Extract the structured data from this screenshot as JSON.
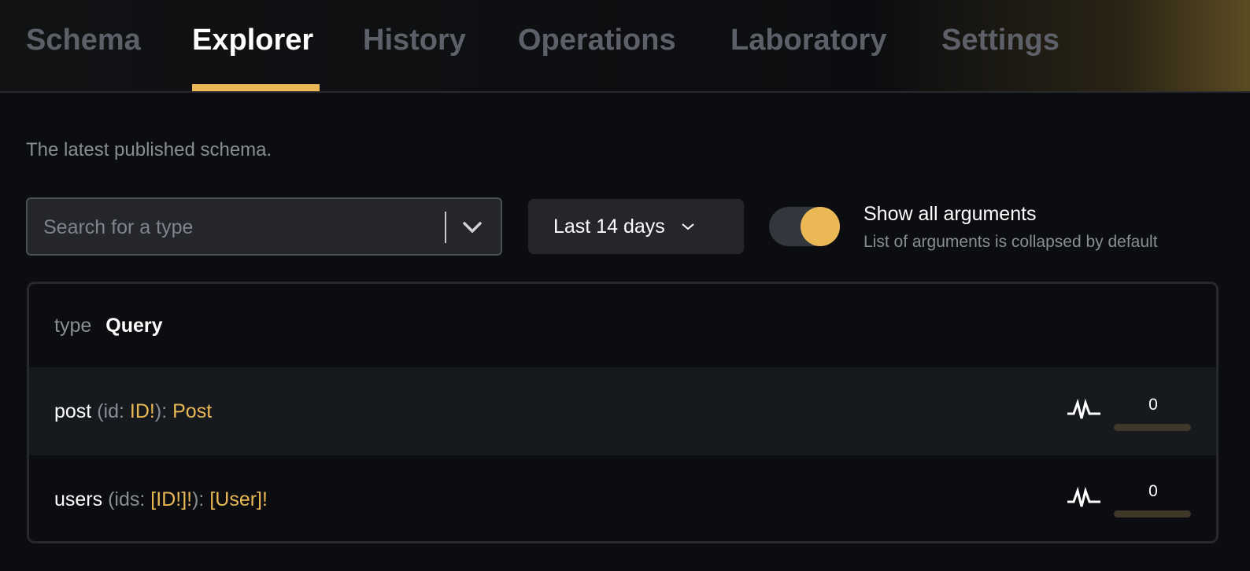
{
  "tabs": [
    {
      "label": "Schema"
    },
    {
      "label": "Explorer",
      "active": true
    },
    {
      "label": "History"
    },
    {
      "label": "Operations"
    },
    {
      "label": "Laboratory"
    },
    {
      "label": "Settings"
    }
  ],
  "subtitle": "The latest published schema.",
  "search": {
    "placeholder": "Search for a type",
    "value": ""
  },
  "date_range": {
    "selected": "Last 14 days"
  },
  "toggle": {
    "label": "Show all arguments",
    "description": "List of arguments is collapsed by default",
    "on": true
  },
  "accent": "#eab854",
  "type_panel": {
    "keyword": "type",
    "name": "Query",
    "fields": [
      {
        "name": "post",
        "arg_open": "(",
        "arg_name": "id",
        "colon": ": ",
        "arg_type": "ID!",
        "arg_close": ")",
        "sep": ": ",
        "return_type": "Post",
        "count": "0",
        "usage_fraction": 0,
        "icon": "activity-icon"
      },
      {
        "name": "users",
        "arg_open": "(",
        "arg_name": "ids",
        "colon": ": ",
        "arg_type": "[ID!]!",
        "arg_close": ")",
        "sep": ": ",
        "return_type": "[User]!",
        "count": "0",
        "usage_fraction": 0,
        "icon": "activity-icon"
      }
    ]
  }
}
